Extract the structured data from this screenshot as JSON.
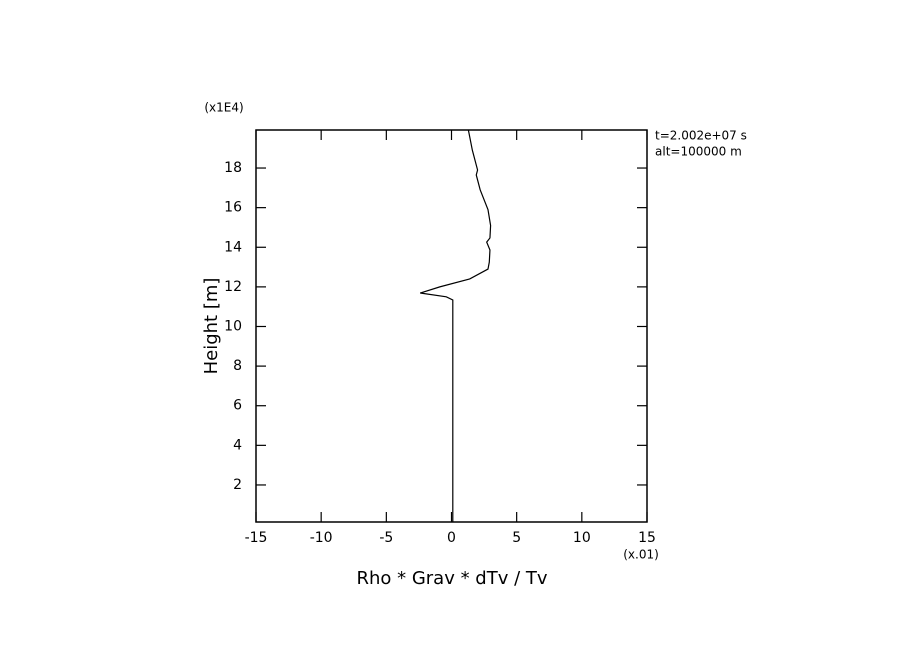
{
  "chart_data": {
    "type": "line",
    "x_label": "Rho * Grav * dTv / Tv",
    "y_label": "Height [m]",
    "x_scale_label": "(x.01)",
    "y_scale_label": "(x1E4)",
    "annotations": [
      "t=2.002e+07 s",
      "alt=100000 m"
    ],
    "xlim": [
      -15,
      15
    ],
    "ylim": [
      0.13,
      19.92
    ],
    "xticks": [
      -15,
      -10,
      -5,
      0,
      5,
      10,
      15
    ],
    "yticks": [
      2,
      4,
      6,
      8,
      10,
      12,
      14,
      16,
      18
    ],
    "series": [
      {
        "color": "#000000",
        "x": [
          0.1,
          0.1,
          -0.4,
          -2.4,
          -0.9,
          1.4,
          2.8,
          2.9,
          2.95,
          2.7,
          2.95,
          3.0,
          2.8,
          2.2,
          1.9,
          2.0,
          1.6,
          1.3
        ],
        "values": [
          0.13,
          11.34,
          11.5,
          11.69,
          12.0,
          12.4,
          12.9,
          13.25,
          13.86,
          14.26,
          14.47,
          15.1,
          15.9,
          16.9,
          17.65,
          17.9,
          18.9,
          19.9
        ]
      }
    ]
  }
}
